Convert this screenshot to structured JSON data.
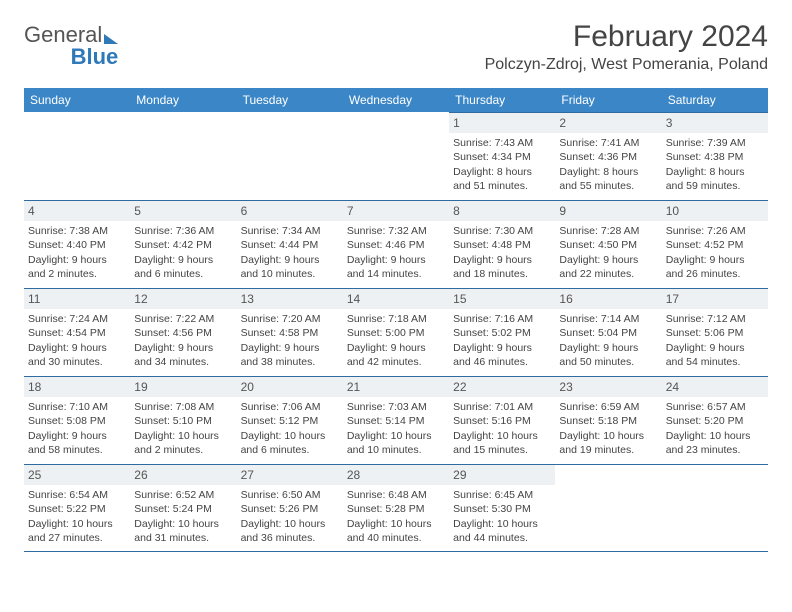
{
  "logo": {
    "part1": "General",
    "part2": "Blue"
  },
  "title": "February 2024",
  "location": "Polczyn-Zdroj, West Pomerania, Poland",
  "colors": {
    "header_bg": "#3b86c6",
    "header_text": "#ffffff",
    "border": "#2f6aa0",
    "daynum_bg": "#eef1f3",
    "text": "#444444",
    "logo_gray": "#555555",
    "logo_blue": "#2f79b9",
    "background": "#ffffff"
  },
  "typography": {
    "title_fontsize": 30,
    "location_fontsize": 16,
    "dow_fontsize": 12,
    "daynum_fontsize": 12,
    "body_fontsize": 10.5,
    "font_family": "Arial"
  },
  "layout": {
    "columns": 7,
    "rows": 5,
    "first_day_column": 4
  },
  "dow": [
    "Sunday",
    "Monday",
    "Tuesday",
    "Wednesday",
    "Thursday",
    "Friday",
    "Saturday"
  ],
  "days": [
    {
      "n": "1",
      "sr": "Sunrise: 7:43 AM",
      "ss": "Sunset: 4:34 PM",
      "dl": "Daylight: 8 hours and 51 minutes."
    },
    {
      "n": "2",
      "sr": "Sunrise: 7:41 AM",
      "ss": "Sunset: 4:36 PM",
      "dl": "Daylight: 8 hours and 55 minutes."
    },
    {
      "n": "3",
      "sr": "Sunrise: 7:39 AM",
      "ss": "Sunset: 4:38 PM",
      "dl": "Daylight: 8 hours and 59 minutes."
    },
    {
      "n": "4",
      "sr": "Sunrise: 7:38 AM",
      "ss": "Sunset: 4:40 PM",
      "dl": "Daylight: 9 hours and 2 minutes."
    },
    {
      "n": "5",
      "sr": "Sunrise: 7:36 AM",
      "ss": "Sunset: 4:42 PM",
      "dl": "Daylight: 9 hours and 6 minutes."
    },
    {
      "n": "6",
      "sr": "Sunrise: 7:34 AM",
      "ss": "Sunset: 4:44 PM",
      "dl": "Daylight: 9 hours and 10 minutes."
    },
    {
      "n": "7",
      "sr": "Sunrise: 7:32 AM",
      "ss": "Sunset: 4:46 PM",
      "dl": "Daylight: 9 hours and 14 minutes."
    },
    {
      "n": "8",
      "sr": "Sunrise: 7:30 AM",
      "ss": "Sunset: 4:48 PM",
      "dl": "Daylight: 9 hours and 18 minutes."
    },
    {
      "n": "9",
      "sr": "Sunrise: 7:28 AM",
      "ss": "Sunset: 4:50 PM",
      "dl": "Daylight: 9 hours and 22 minutes."
    },
    {
      "n": "10",
      "sr": "Sunrise: 7:26 AM",
      "ss": "Sunset: 4:52 PM",
      "dl": "Daylight: 9 hours and 26 minutes."
    },
    {
      "n": "11",
      "sr": "Sunrise: 7:24 AM",
      "ss": "Sunset: 4:54 PM",
      "dl": "Daylight: 9 hours and 30 minutes."
    },
    {
      "n": "12",
      "sr": "Sunrise: 7:22 AM",
      "ss": "Sunset: 4:56 PM",
      "dl": "Daylight: 9 hours and 34 minutes."
    },
    {
      "n": "13",
      "sr": "Sunrise: 7:20 AM",
      "ss": "Sunset: 4:58 PM",
      "dl": "Daylight: 9 hours and 38 minutes."
    },
    {
      "n": "14",
      "sr": "Sunrise: 7:18 AM",
      "ss": "Sunset: 5:00 PM",
      "dl": "Daylight: 9 hours and 42 minutes."
    },
    {
      "n": "15",
      "sr": "Sunrise: 7:16 AM",
      "ss": "Sunset: 5:02 PM",
      "dl": "Daylight: 9 hours and 46 minutes."
    },
    {
      "n": "16",
      "sr": "Sunrise: 7:14 AM",
      "ss": "Sunset: 5:04 PM",
      "dl": "Daylight: 9 hours and 50 minutes."
    },
    {
      "n": "17",
      "sr": "Sunrise: 7:12 AM",
      "ss": "Sunset: 5:06 PM",
      "dl": "Daylight: 9 hours and 54 minutes."
    },
    {
      "n": "18",
      "sr": "Sunrise: 7:10 AM",
      "ss": "Sunset: 5:08 PM",
      "dl": "Daylight: 9 hours and 58 minutes."
    },
    {
      "n": "19",
      "sr": "Sunrise: 7:08 AM",
      "ss": "Sunset: 5:10 PM",
      "dl": "Daylight: 10 hours and 2 minutes."
    },
    {
      "n": "20",
      "sr": "Sunrise: 7:06 AM",
      "ss": "Sunset: 5:12 PM",
      "dl": "Daylight: 10 hours and 6 minutes."
    },
    {
      "n": "21",
      "sr": "Sunrise: 7:03 AM",
      "ss": "Sunset: 5:14 PM",
      "dl": "Daylight: 10 hours and 10 minutes."
    },
    {
      "n": "22",
      "sr": "Sunrise: 7:01 AM",
      "ss": "Sunset: 5:16 PM",
      "dl": "Daylight: 10 hours and 15 minutes."
    },
    {
      "n": "23",
      "sr": "Sunrise: 6:59 AM",
      "ss": "Sunset: 5:18 PM",
      "dl": "Daylight: 10 hours and 19 minutes."
    },
    {
      "n": "24",
      "sr": "Sunrise: 6:57 AM",
      "ss": "Sunset: 5:20 PM",
      "dl": "Daylight: 10 hours and 23 minutes."
    },
    {
      "n": "25",
      "sr": "Sunrise: 6:54 AM",
      "ss": "Sunset: 5:22 PM",
      "dl": "Daylight: 10 hours and 27 minutes."
    },
    {
      "n": "26",
      "sr": "Sunrise: 6:52 AM",
      "ss": "Sunset: 5:24 PM",
      "dl": "Daylight: 10 hours and 31 minutes."
    },
    {
      "n": "27",
      "sr": "Sunrise: 6:50 AM",
      "ss": "Sunset: 5:26 PM",
      "dl": "Daylight: 10 hours and 36 minutes."
    },
    {
      "n": "28",
      "sr": "Sunrise: 6:48 AM",
      "ss": "Sunset: 5:28 PM",
      "dl": "Daylight: 10 hours and 40 minutes."
    },
    {
      "n": "29",
      "sr": "Sunrise: 6:45 AM",
      "ss": "Sunset: 5:30 PM",
      "dl": "Daylight: 10 hours and 44 minutes."
    }
  ]
}
